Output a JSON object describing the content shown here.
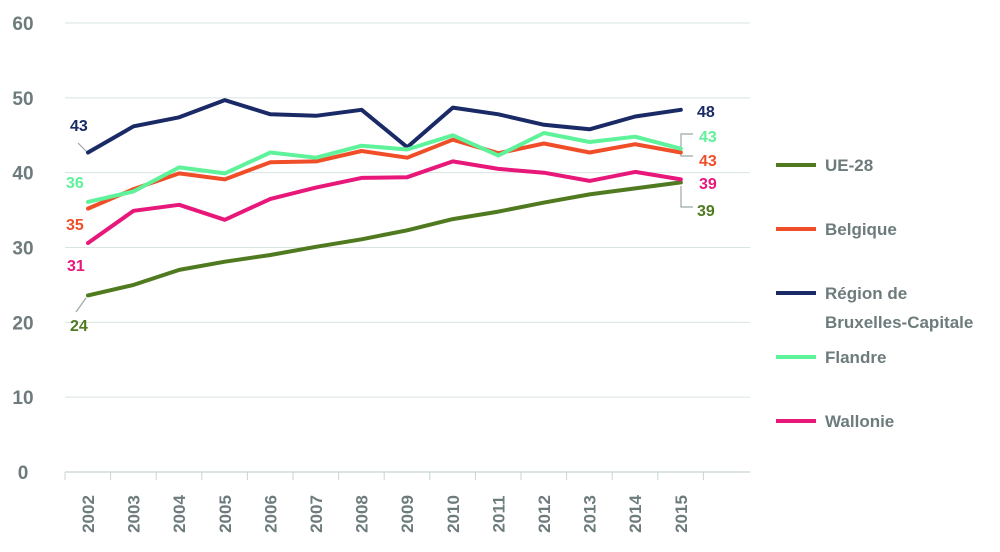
{
  "chart_data": {
    "type": "line",
    "x": [
      "2002",
      "2003",
      "2004",
      "2005",
      "2006",
      "2007",
      "2008",
      "2009",
      "2010",
      "2011",
      "2012",
      "2013",
      "2014",
      "2015"
    ],
    "ylim": [
      0,
      60
    ],
    "yticks": [
      "0",
      "10",
      "20",
      "30",
      "40",
      "50",
      "60"
    ],
    "grid": true,
    "legend_position": "right",
    "series": [
      {
        "name": "UE-28",
        "color": "#4f7a1f",
        "values": [
          23.6,
          25.0,
          27.0,
          28.1,
          29.0,
          30.1,
          31.1,
          32.3,
          33.8,
          34.8,
          36.0,
          37.1,
          37.9,
          38.7
        ],
        "start_label": "24",
        "end_label": "39"
      },
      {
        "name": "Belgique",
        "color": "#f04e28",
        "values": [
          35.2,
          37.8,
          39.9,
          39.1,
          41.4,
          41.5,
          42.9,
          42.0,
          44.4,
          42.6,
          43.9,
          42.7,
          43.8,
          42.7
        ],
        "start_label": "35",
        "end_label": "43"
      },
      {
        "name": "Région de Bruxelles-Capitale",
        "legend_lines": [
          "Région de",
          "Bruxelles-Capitale"
        ],
        "color": "#1a2a66",
        "values": [
          42.7,
          46.2,
          47.4,
          49.7,
          47.8,
          47.6,
          48.4,
          43.4,
          48.7,
          47.8,
          46.4,
          45.8,
          47.5,
          48.4
        ],
        "start_label": "43",
        "end_label": "48"
      },
      {
        "name": "Flandre",
        "color": "#5ef29a",
        "values": [
          36.1,
          37.5,
          40.7,
          39.9,
          42.7,
          42.0,
          43.6,
          43.1,
          45.0,
          42.3,
          45.3,
          44.1,
          44.8,
          43.2
        ],
        "start_label": "36",
        "end_label": "43"
      },
      {
        "name": "Wallonie",
        "color": "#e8187a",
        "values": [
          30.6,
          34.9,
          35.7,
          33.7,
          36.5,
          38.0,
          39.3,
          39.4,
          41.5,
          40.5,
          40.0,
          38.9,
          40.1,
          39.1
        ],
        "start_label": "31",
        "end_label": "39"
      }
    ]
  }
}
